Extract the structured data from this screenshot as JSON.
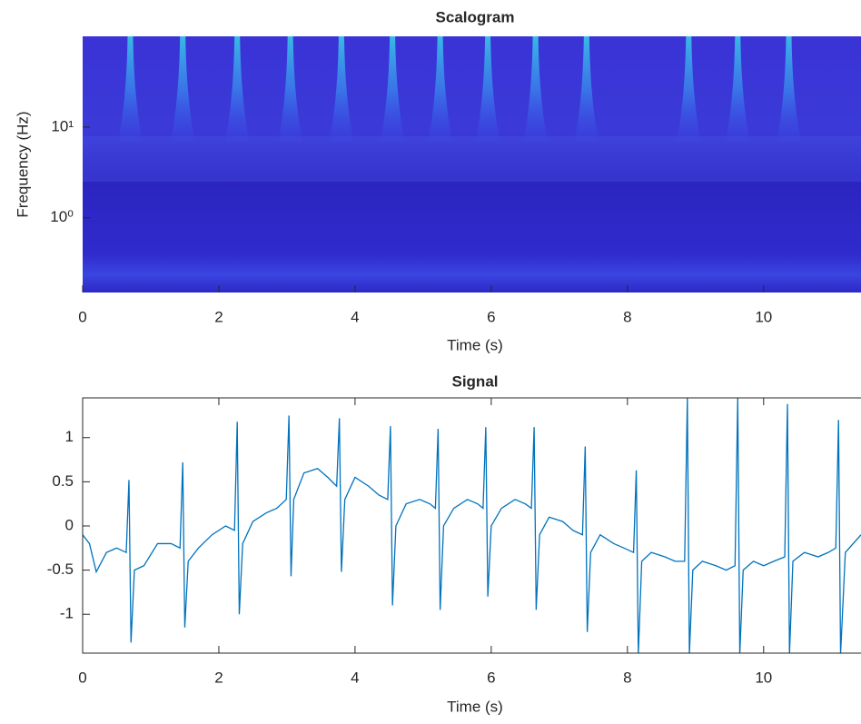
{
  "chart_data": [
    {
      "type": "scalogram",
      "title": "Scalogram",
      "x_label": "Time (s)",
      "y_label": "Frequency (Hz)",
      "x": [
        0.7,
        1.47,
        2.27,
        3.05,
        3.8,
        4.55,
        5.25,
        5.95,
        6.65,
        7.4,
        8.9,
        9.62,
        10.37
      ],
      "xlim": [
        0,
        11.43
      ],
      "xticks": [
        0,
        2,
        4,
        6,
        8,
        10
      ],
      "ylim": [
        0.15,
        100
      ],
      "yticks": [
        {
          "value": 1,
          "label": "10⁰"
        },
        {
          "value": 10,
          "label": "10¹"
        }
      ],
      "log_y": true
    },
    {
      "type": "line",
      "title": "Signal",
      "x_label": "Time (s)",
      "color": "#0072bd",
      "x": [
        0,
        0.1,
        0.2,
        0.35,
        0.5,
        0.64,
        0.68,
        0.71,
        0.76,
        0.9,
        1.1,
        1.3,
        1.43,
        1.47,
        1.5,
        1.55,
        1.7,
        1.9,
        2.1,
        2.23,
        2.27,
        2.3,
        2.35,
        2.5,
        2.7,
        2.85,
        2.99,
        3.03,
        3.06,
        3.1,
        3.25,
        3.45,
        3.6,
        3.73,
        3.77,
        3.8,
        3.85,
        4.0,
        4.2,
        4.35,
        4.48,
        4.52,
        4.55,
        4.6,
        4.75,
        4.95,
        5.1,
        5.18,
        5.22,
        5.25,
        5.3,
        5.45,
        5.65,
        5.8,
        5.88,
        5.92,
        5.95,
        6.0,
        6.15,
        6.35,
        6.5,
        6.59,
        6.63,
        6.66,
        6.71,
        6.85,
        7.05,
        7.2,
        7.34,
        7.38,
        7.41,
        7.46,
        7.6,
        7.8,
        7.95,
        8.09,
        8.13,
        8.16,
        8.21,
        8.35,
        8.55,
        8.7,
        8.84,
        8.88,
        8.91,
        8.96,
        9.1,
        9.3,
        9.45,
        9.58,
        9.62,
        9.65,
        9.7,
        9.85,
        10.0,
        10.15,
        10.31,
        10.35,
        10.38,
        10.43,
        10.6,
        10.8,
        10.95,
        11.06,
        11.1,
        11.13,
        11.2,
        11.43
      ],
      "values": [
        -0.1,
        -0.2,
        -0.52,
        -0.3,
        -0.25,
        -0.3,
        0.52,
        -1.32,
        -0.5,
        -0.45,
        -0.2,
        -0.2,
        -0.25,
        0.72,
        -1.15,
        -0.4,
        -0.25,
        -0.1,
        0.0,
        -0.05,
        1.18,
        -1.0,
        -0.2,
        0.05,
        0.15,
        0.2,
        0.3,
        1.25,
        -0.57,
        0.3,
        0.6,
        0.65,
        0.55,
        0.45,
        1.22,
        -0.52,
        0.3,
        0.55,
        0.45,
        0.35,
        0.3,
        1.13,
        -0.9,
        0.0,
        0.25,
        0.3,
        0.25,
        0.2,
        1.1,
        -0.95,
        0.0,
        0.2,
        0.3,
        0.25,
        0.2,
        1.12,
        -0.8,
        0.0,
        0.2,
        0.3,
        0.25,
        0.2,
        1.12,
        -0.95,
        -0.1,
        0.1,
        0.05,
        -0.05,
        -0.1,
        0.9,
        -1.2,
        -0.3,
        -0.1,
        -0.2,
        -0.25,
        -0.3,
        0.63,
        -1.45,
        -0.4,
        -0.3,
        -0.35,
        -0.4,
        -0.4,
        1.45,
        -1.45,
        -0.5,
        -0.4,
        -0.45,
        -0.5,
        -0.45,
        1.45,
        -1.45,
        -0.5,
        -0.4,
        -0.45,
        -0.4,
        -0.35,
        1.38,
        -1.45,
        -0.4,
        -0.3,
        -0.35,
        -0.3,
        -0.25,
        1.2,
        -1.45,
        -0.3,
        -0.1
      ],
      "xlim": [
        0,
        11.43
      ],
      "xticks": [
        0,
        2,
        4,
        6,
        8,
        10
      ],
      "ylim": [
        -1.44,
        1.45
      ],
      "yticks": [
        -1,
        -0.5,
        0,
        0.5,
        1
      ]
    }
  ]
}
